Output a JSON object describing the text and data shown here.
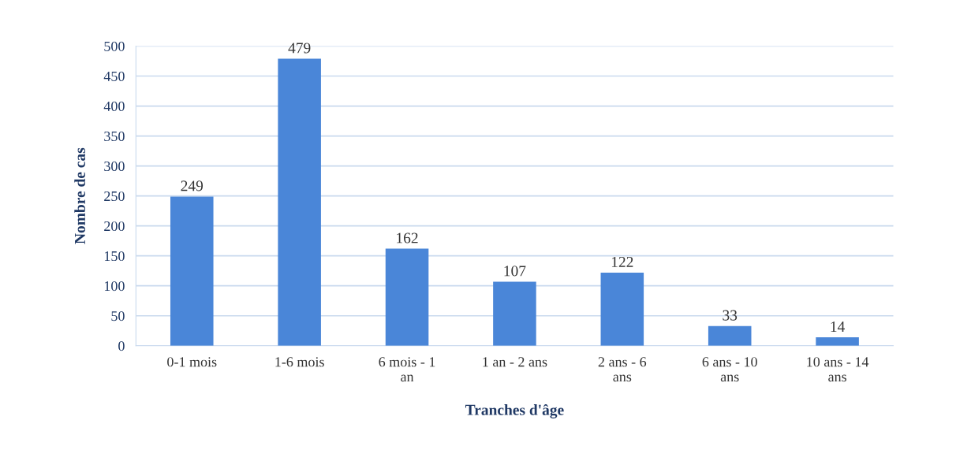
{
  "chart_data": {
    "type": "bar",
    "xlabel": "Tranches d'âge",
    "ylabel": "Nombre de cas",
    "categories": [
      "0-1 mois",
      "1-6 mois",
      "6 mois - 1\nan",
      "1 an - 2 ans",
      "2 ans - 6\nans",
      "6 ans - 10\nans",
      "10 ans - 14\nans"
    ],
    "values": [
      249,
      479,
      162,
      107,
      122,
      33,
      14
    ],
    "color": "#4a86d8",
    "ylim": [
      0,
      500
    ],
    "yticks": [
      0,
      50,
      100,
      150,
      200,
      250,
      300,
      350,
      400,
      450,
      500
    ],
    "grid": "y",
    "data_labels": true
  }
}
